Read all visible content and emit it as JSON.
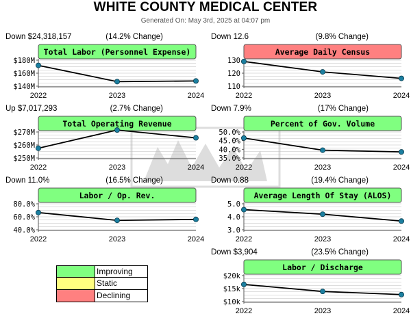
{
  "header": {
    "title": "WHITE COUNTY MEDICAL CENTER",
    "subtitle": "Generated On: May 3rd, 2025 at 04:07 pm"
  },
  "colors": {
    "improving": "#80ff80",
    "static": "#ffff80",
    "declining": "#ff8080",
    "line": "#000000",
    "marker": "#1b7fa0",
    "grid": "#bbbbbb"
  },
  "legend": {
    "items": [
      {
        "label": "Improving",
        "color": "#80ff80"
      },
      {
        "label": "Static",
        "color": "#ffff80"
      },
      {
        "label": "Declining",
        "color": "#ff8080"
      }
    ]
  },
  "chart_data": [
    {
      "type": "line",
      "title": "Total Labor (Personnel Expense)",
      "status": "improving",
      "change_left": "Down $24,318,157",
      "change_right": "(14.2% Change)",
      "x": [
        "2022",
        "2023",
        "2024"
      ],
      "values": [
        172,
        147,
        148
      ],
      "ylim": [
        140,
        180
      ],
      "yticks": [
        140,
        160,
        180
      ],
      "ytick_labels": [
        "$140M",
        "$160M",
        "$180M"
      ]
    },
    {
      "type": "line",
      "title": "Average Daily Census",
      "status": "declining",
      "change_left": "Down 12.6",
      "change_right": "(9.8% Change)",
      "x": [
        "2022",
        "2023",
        "2024"
      ],
      "values": [
        129,
        121,
        116
      ],
      "ylim": [
        110,
        130
      ],
      "yticks": [
        110,
        120,
        130
      ],
      "ytick_labels": [
        "110",
        "120",
        "130"
      ]
    },
    {
      "type": "line",
      "title": "Total Operating Revenue",
      "status": "improving",
      "change_left": "Up $7,017,293",
      "change_right": "(2.7% Change)",
      "x": [
        "2022",
        "2023",
        "2024"
      ],
      "values": [
        257.5,
        271.5,
        265.5
      ],
      "ylim": [
        250,
        270
      ],
      "yticks": [
        250,
        260,
        270
      ],
      "ytick_labels": [
        "$250M",
        "$260M",
        "$270M"
      ]
    },
    {
      "type": "line",
      "title": "Percent of Gov. Volume",
      "status": "improving",
      "change_left": "Down 7.9%",
      "change_right": "(17% Change)",
      "x": [
        "2022",
        "2023",
        "2024"
      ],
      "values": [
        46.5,
        39.5,
        38.5
      ],
      "ylim": [
        35,
        50
      ],
      "yticks": [
        35,
        40,
        45,
        50
      ],
      "ytick_labels": [
        "35.0%",
        "40.0%",
        "45.0%",
        "50.0%"
      ]
    },
    {
      "type": "line",
      "title": "Labor / Op. Rev.",
      "status": "improving",
      "change_left": "Down 11.0%",
      "change_right": "(16.5% Change)",
      "x": [
        "2022",
        "2023",
        "2024"
      ],
      "values": [
        66.5,
        54.5,
        56
      ],
      "ylim": [
        40,
        80
      ],
      "yticks": [
        40,
        60,
        80
      ],
      "ytick_labels": [
        "40.0%",
        "60.0%",
        "80.0%"
      ]
    },
    {
      "type": "line",
      "title": "Average Length Of Stay (ALOS)",
      "status": "improving",
      "change_left": "Down 0.88",
      "change_right": "(19.4% Change)",
      "x": [
        "2022",
        "2023",
        "2024"
      ],
      "values": [
        4.55,
        4.2,
        3.67
      ],
      "ylim": [
        3,
        5
      ],
      "yticks": [
        3,
        4,
        5
      ],
      "ytick_labels": [
        "3.0",
        "4.0",
        "5.0"
      ]
    },
    {
      "type": "line",
      "title": "Labor / Discharge",
      "status": "improving",
      "change_left": "Down $3,904",
      "change_right": "(23.5% Change)",
      "x": [
        "2022",
        "2023",
        "2024"
      ],
      "values": [
        16600,
        13900,
        12700
      ],
      "ylim": [
        10000,
        20000
      ],
      "yticks": [
        10000,
        15000,
        20000
      ],
      "ytick_labels": [
        "$10k",
        "$15k",
        "$20k"
      ]
    }
  ]
}
